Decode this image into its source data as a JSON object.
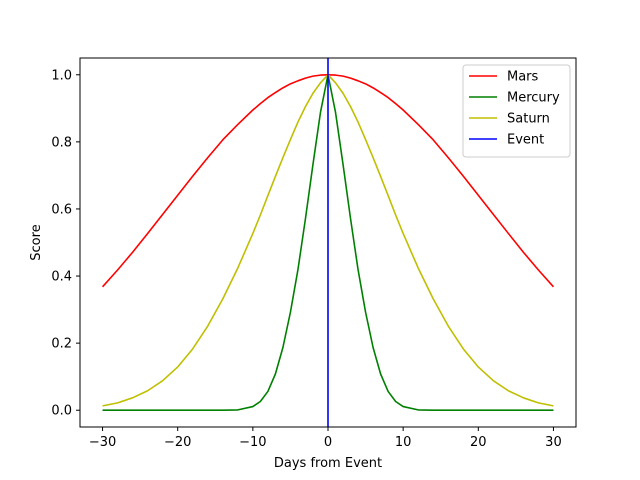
{
  "chart_data": {
    "type": "line",
    "xlabel": "Days from Event",
    "ylabel": "Score",
    "xlim": [
      -33,
      33
    ],
    "ylim": [
      -0.05,
      1.05
    ],
    "xticks": [
      -30,
      -20,
      -10,
      0,
      10,
      20,
      30
    ],
    "xtick_labels": [
      "−30",
      "−20",
      "−10",
      "0",
      "10",
      "20",
      "30"
    ],
    "yticks": [
      0.0,
      0.2,
      0.4,
      0.6,
      0.8,
      1.0
    ],
    "ytick_labels": [
      "0.0",
      "0.2",
      "0.4",
      "0.6",
      "0.8",
      "1.0"
    ],
    "grid": false,
    "legend_position": "top-right",
    "x": [
      -30,
      -28,
      -26,
      -24,
      -22,
      -20,
      -18,
      -16,
      -14,
      -12,
      -10,
      -9,
      -8,
      -7,
      -6,
      -5,
      -4,
      -3,
      -2,
      -1,
      0,
      1,
      2,
      3,
      4,
      5,
      6,
      7,
      8,
      9,
      10,
      12,
      14,
      16,
      18,
      20,
      22,
      24,
      26,
      28,
      30
    ],
    "series": [
      {
        "name": "Mars",
        "color": "#ff0000",
        "values": [
          0.368,
          0.418,
          0.471,
          0.527,
          0.584,
          0.641,
          0.698,
          0.753,
          0.806,
          0.852,
          0.895,
          0.914,
          0.932,
          0.947,
          0.961,
          0.973,
          0.982,
          0.99,
          0.996,
          0.999,
          1.0,
          0.999,
          0.996,
          0.99,
          0.982,
          0.973,
          0.961,
          0.947,
          0.932,
          0.914,
          0.895,
          0.852,
          0.806,
          0.753,
          0.698,
          0.641,
          0.584,
          0.527,
          0.471,
          0.418,
          0.368
        ]
      },
      {
        "name": "Mercury",
        "color": "#008000",
        "values": [
          0.0,
          0.0,
          0.0,
          0.0,
          0.0,
          0.0,
          0.0,
          0.0,
          0.0,
          0.001,
          0.011,
          0.026,
          0.056,
          0.108,
          0.187,
          0.292,
          0.419,
          0.571,
          0.733,
          0.888,
          1.0,
          0.888,
          0.733,
          0.571,
          0.419,
          0.292,
          0.187,
          0.108,
          0.056,
          0.026,
          0.011,
          0.001,
          0.0,
          0.0,
          0.0,
          0.0,
          0.0,
          0.0,
          0.0,
          0.0,
          0.0
        ]
      },
      {
        "name": "Saturn",
        "color": "#bfbf00",
        "values": [
          0.013,
          0.022,
          0.037,
          0.058,
          0.088,
          0.129,
          0.183,
          0.251,
          0.332,
          0.424,
          0.527,
          0.582,
          0.64,
          0.697,
          0.753,
          0.807,
          0.859,
          0.905,
          0.945,
          0.976,
          1.0,
          0.976,
          0.945,
          0.905,
          0.859,
          0.807,
          0.753,
          0.697,
          0.64,
          0.582,
          0.527,
          0.424,
          0.332,
          0.251,
          0.183,
          0.129,
          0.088,
          0.058,
          0.037,
          0.022,
          0.013
        ]
      }
    ],
    "vlines": [
      {
        "name": "Event",
        "x": 0,
        "color": "#0000ff"
      }
    ]
  }
}
